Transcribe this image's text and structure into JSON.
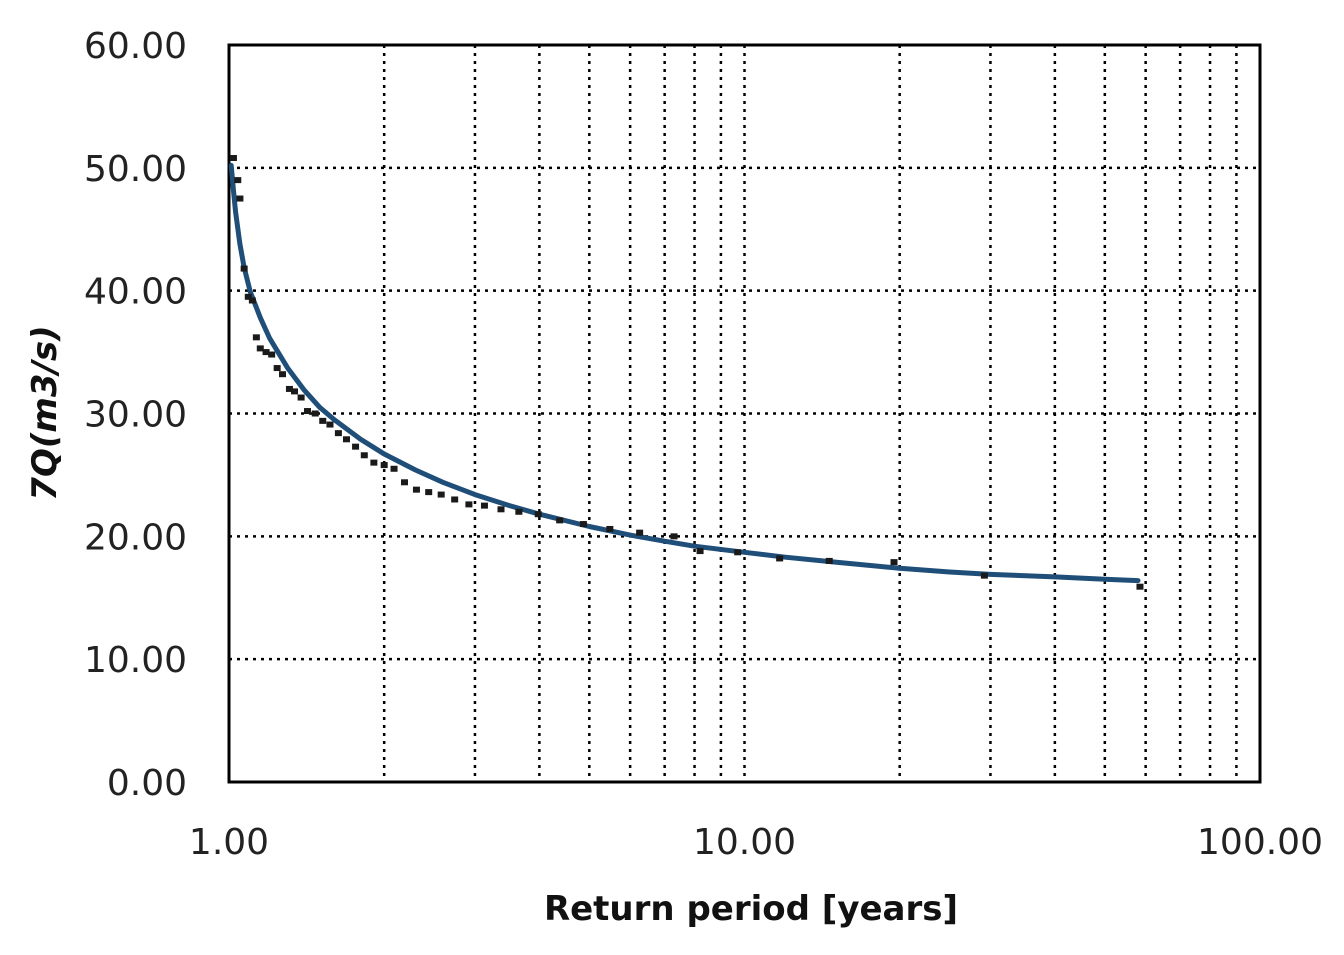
{
  "chart_data": {
    "type": "scatter",
    "title": "",
    "xlabel": "Return period [years]",
    "ylabel": "7Q(m3/s)",
    "x_scale": "log",
    "xlim": [
      1,
      100
    ],
    "ylim": [
      0,
      60
    ],
    "x_ticks": [
      1,
      10,
      100
    ],
    "x_tick_labels": [
      "1.00",
      "10.00",
      "100.00"
    ],
    "y_ticks": [
      0,
      10,
      20,
      30,
      40,
      50,
      60
    ],
    "y_tick_labels": [
      "0.00",
      "10.00",
      "20.00",
      "30.00",
      "40.00",
      "50.00",
      "60.00"
    ],
    "grid": true,
    "grid_style": "dotted",
    "legend": "none",
    "colors": {
      "points": "#1a1a1a",
      "fit_line": "#1f4e79",
      "grid": "#000000",
      "axes": "#000000"
    },
    "series": [
      {
        "kind": "points",
        "x": [
          1.02,
          1.04,
          1.05,
          1.07,
          1.09,
          1.11,
          1.13,
          1.15,
          1.18,
          1.21,
          1.24,
          1.27,
          1.31,
          1.34,
          1.38,
          1.42,
          1.47,
          1.52,
          1.57,
          1.63,
          1.69,
          1.76,
          1.83,
          1.91,
          2.0,
          2.09,
          2.19,
          2.31,
          2.44,
          2.58,
          2.74,
          2.92,
          3.13,
          3.37,
          3.65,
          3.98,
          4.38,
          4.87,
          5.48,
          6.26,
          7.3,
          8.2,
          9.7,
          11.7,
          14.6,
          19.5,
          29.2,
          58.5
        ],
        "y": [
          50.8,
          49.0,
          47.5,
          41.8,
          39.5,
          39.2,
          36.2,
          35.3,
          35.0,
          34.8,
          33.7,
          33.2,
          32.0,
          31.8,
          31.3,
          30.2,
          30.0,
          29.4,
          29.1,
          28.4,
          27.9,
          27.3,
          26.6,
          26.0,
          25.8,
          25.5,
          24.4,
          23.8,
          23.6,
          23.4,
          23.0,
          22.6,
          22.5,
          22.2,
          22.0,
          21.8,
          21.3,
          21.0,
          20.6,
          20.3,
          20.0,
          18.8,
          18.7,
          18.2,
          18.0,
          17.9,
          16.8,
          15.9
        ]
      },
      {
        "kind": "fit_line",
        "x": [
          1.01,
          1.02,
          1.03,
          1.05,
          1.07,
          1.1,
          1.15,
          1.2,
          1.3,
          1.4,
          1.5,
          1.6,
          1.8,
          2.0,
          2.3,
          2.6,
          3.0,
          3.5,
          4.0,
          5.0,
          6.0,
          7.0,
          8.0,
          10.0,
          12.0,
          15.0,
          20.0,
          25.0,
          30.0,
          40.0,
          50.0,
          58.0
        ],
        "y": [
          50.2,
          48.2,
          46.4,
          43.8,
          41.9,
          39.9,
          37.8,
          36.1,
          33.7,
          31.9,
          30.5,
          29.5,
          27.9,
          26.7,
          25.4,
          24.4,
          23.4,
          22.5,
          21.8,
          20.8,
          20.1,
          19.6,
          19.2,
          18.7,
          18.3,
          17.9,
          17.4,
          17.1,
          16.9,
          16.7,
          16.5,
          16.4
        ]
      }
    ]
  }
}
